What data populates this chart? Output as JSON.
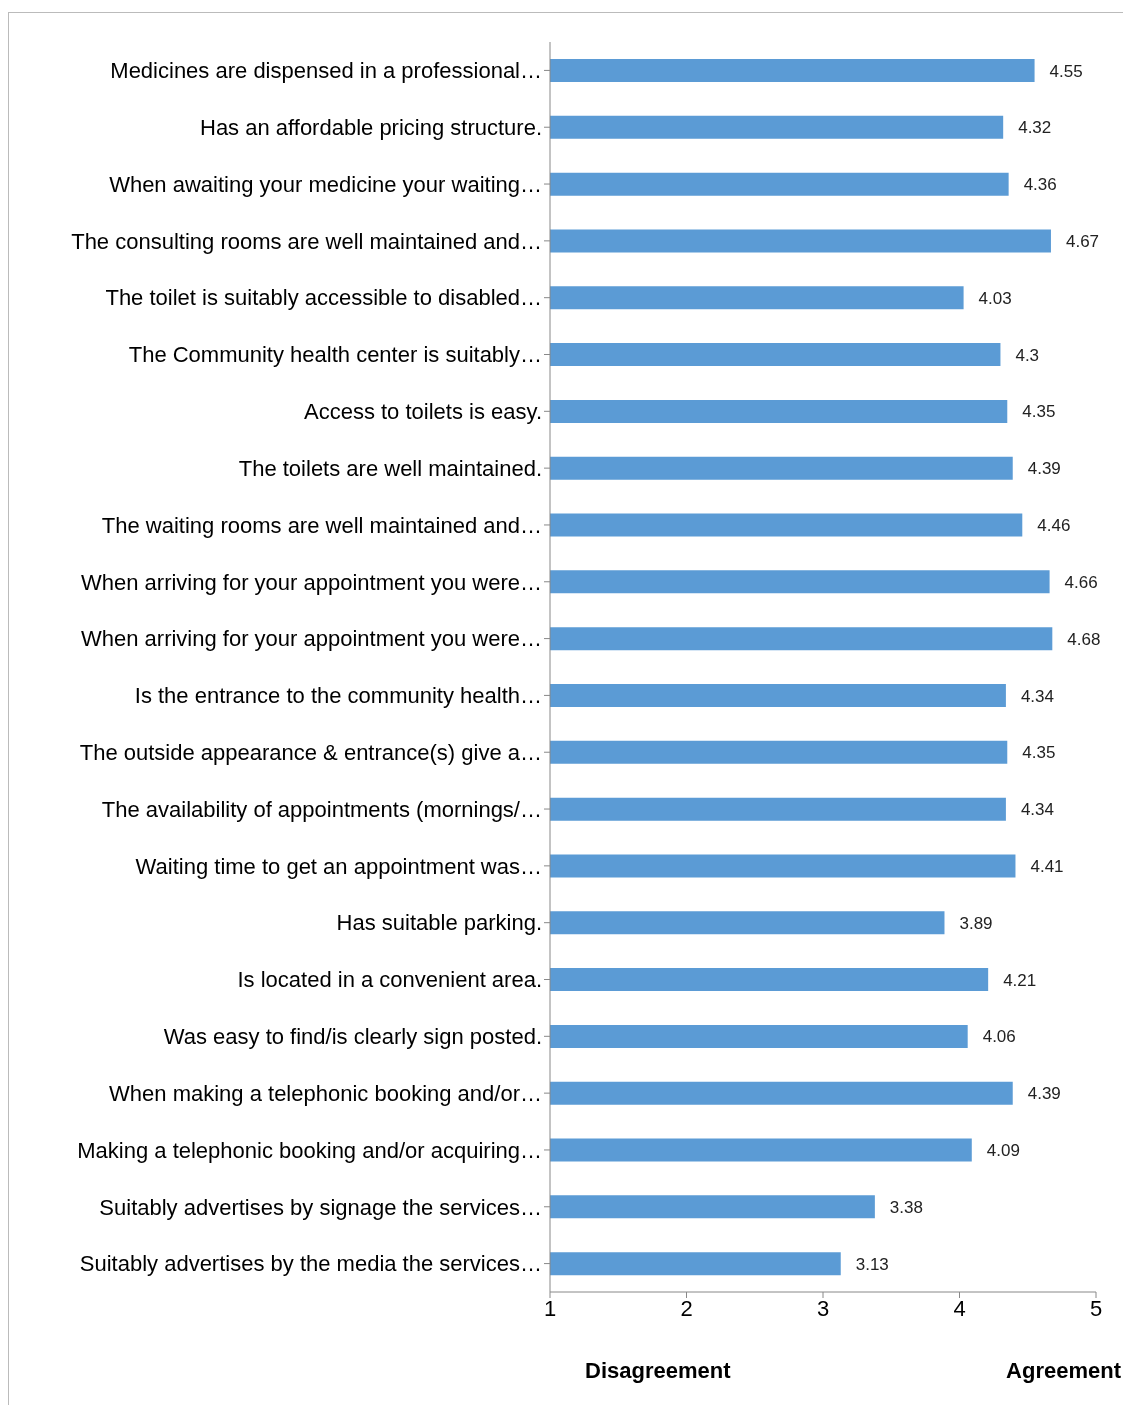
{
  "chart_data": {
    "type": "bar",
    "orientation": "horizontal",
    "categories": [
      "Medicines are dispensed in a professional…",
      "Has an affordable pricing structure.",
      "When awaiting your medicine your waiting…",
      "The consulting rooms are well maintained and…",
      "The toilet is suitably accessible to disabled…",
      "The Community health center is suitably…",
      "Access to toilets is easy.",
      "The toilets are well maintained.",
      "The waiting rooms are well maintained and…",
      "When arriving for your appointment you were…",
      "When arriving for your appointment you were…",
      "Is the entrance to the community health…",
      "The outside appearance & entrance(s) give a…",
      "The availability of appointments (mornings/…",
      "Waiting time to get an appointment was…",
      "Has suitable parking.",
      "Is located in a convenient area.",
      "Was easy to find/is clearly sign posted.",
      "When making a telephonic booking and/or…",
      "Making a telephonic booking and/or acquiring…",
      "Suitably advertises by signage the services…",
      "Suitably advertises by the media the services…"
    ],
    "values": [
      4.55,
      4.32,
      4.36,
      4.67,
      4.03,
      4.3,
      4.35,
      4.39,
      4.46,
      4.66,
      4.68,
      4.34,
      4.35,
      4.34,
      4.41,
      3.89,
      4.21,
      4.06,
      4.39,
      4.09,
      3.38,
      3.13
    ],
    "color": "#5b9bd5",
    "xlim": [
      1,
      5
    ],
    "xticks": [
      1,
      2,
      3,
      4,
      5
    ],
    "data_labels": true,
    "annotations": [
      "Disagreement",
      "Agreement"
    ]
  }
}
